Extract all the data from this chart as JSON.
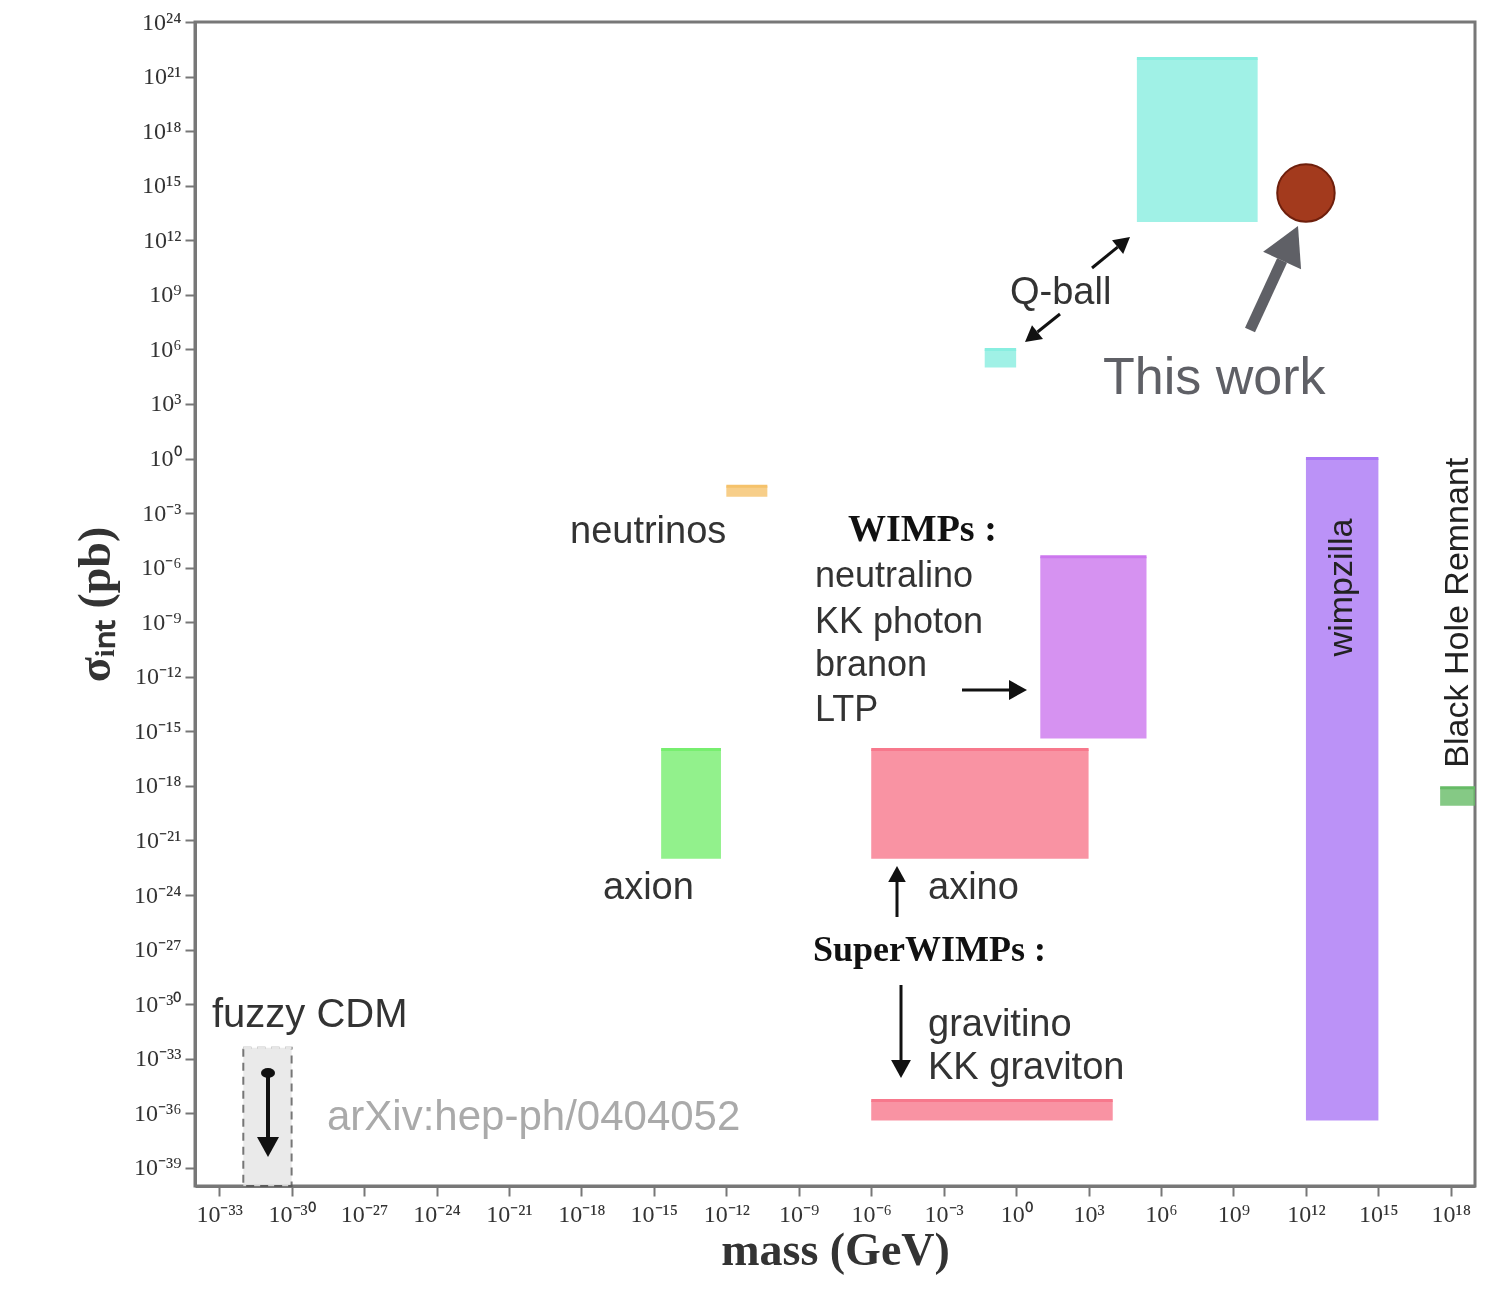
{
  "chart_data": {
    "type": "line",
    "xlabel": "mass (GeV)",
    "ylabel": "σᵢₙₜ (pb)",
    "log": "xy",
    "grid": false,
    "xlim": [
      1e-34,
      1e+19
    ],
    "ylim": [
      1e-40,
      1e+24
    ],
    "xticks": [
      {
        "value": 1e-33,
        "label": "10⁻³³"
      },
      {
        "value": 1e-30,
        "label": "10⁻³⁰"
      },
      {
        "value": 1e-27,
        "label": "10⁻²⁷"
      },
      {
        "value": 1e-24,
        "label": "10⁻²⁴"
      },
      {
        "value": 1e-21,
        "label": "10⁻²¹"
      },
      {
        "value": 1e-18,
        "label": "10⁻¹⁸"
      },
      {
        "value": 1e-15,
        "label": "10⁻¹⁵"
      },
      {
        "value": 1e-12,
        "label": "10⁻¹²"
      },
      {
        "value": 1e-09,
        "label": "10⁻⁹"
      },
      {
        "value": 1e-06,
        "label": "10⁻⁶"
      },
      {
        "value": 0.001,
        "label": "10⁻³"
      },
      {
        "value": 1,
        "label": "10⁰"
      },
      {
        "value": 1000.0,
        "label": "10³"
      },
      {
        "value": 1000000.0,
        "label": "10⁶"
      },
      {
        "value": 1000000000.0,
        "label": "10⁹"
      },
      {
        "value": 1000000000000.0,
        "label": "10¹²"
      },
      {
        "value": 1000000000000000.0,
        "label": "10¹⁵"
      },
      {
        "value": 1e+18,
        "label": "10¹⁸"
      }
    ],
    "yticks": [
      {
        "value": 1e-39,
        "label": "10⁻³⁹"
      },
      {
        "value": 1e-36,
        "label": "10⁻³⁶"
      },
      {
        "value": 1e-33,
        "label": "10⁻³³"
      },
      {
        "value": 1e-30,
        "label": "10⁻³⁰"
      },
      {
        "value": 1e-27,
        "label": "10⁻²⁷"
      },
      {
        "value": 1e-24,
        "label": "10⁻²⁴"
      },
      {
        "value": 1e-21,
        "label": "10⁻²¹"
      },
      {
        "value": 1e-18,
        "label": "10⁻¹⁸"
      },
      {
        "value": 1e-15,
        "label": "10⁻¹⁵"
      },
      {
        "value": 1e-12,
        "label": "10⁻¹²"
      },
      {
        "value": 1e-09,
        "label": "10⁻⁹"
      },
      {
        "value": 1e-06,
        "label": "10⁻⁶"
      },
      {
        "value": 0.001,
        "label": "10⁻³"
      },
      {
        "value": 1,
        "label": "10⁰"
      },
      {
        "value": 1000.0,
        "label": "10³"
      },
      {
        "value": 1000000.0,
        "label": "10⁶"
      },
      {
        "value": 1000000000.0,
        "label": "10⁹"
      },
      {
        "value": 1000000000000.0,
        "label": "10¹²"
      },
      {
        "value": 1000000000000000.0,
        "label": "10¹⁵"
      },
      {
        "value": 1e+18,
        "label": "10¹⁸"
      },
      {
        "value": 1e+21,
        "label": "10²¹"
      },
      {
        "value": 1e+24,
        "label": "10²⁴"
      }
    ],
    "series": [
      {
        "color": "#88eee0",
        "x": [
          100000.0,
          10000000000.0
        ],
        "values": [
          1e+22,
          1e+22
        ],
        "upper": [
          1e+22,
          1e+22
        ],
        "lower": [
          10000000000000.0,
          10000000000000.0
        ]
      },
      {
        "color": "#88eee0",
        "x": [
          0.05,
          1
        ],
        "values": [
          1000000.0,
          1000000.0
        ],
        "upper": [
          1000000.0,
          1000000.0
        ],
        "lower": [
          100000.0,
          100000.0
        ]
      },
      {
        "color": "#f5c26b",
        "x": [
          1e-12,
          5e-11
        ],
        "values": [
          0.03,
          0.03
        ],
        "upper": [
          0.03,
          0.03
        ],
        "lower": [
          0.008,
          0.008
        ]
      },
      {
        "color": "#77ee6f",
        "x": [
          2e-15,
          6e-13
        ],
        "values": [
          1e-16,
          1e-16
        ],
        "upper": [
          1e-16,
          1e-16
        ],
        "lower": [
          1e-22,
          1e-22
        ]
      },
      {
        "color": "#cc77ee",
        "x": [
          10,
          250000.0
        ],
        "values": [
          4e-06,
          4e-06
        ],
        "upper": [
          4e-06,
          4e-06
        ],
        "lower": [
          4e-16,
          4e-16
        ]
      },
      {
        "color": "#f7788c",
        "x": [
          1e-06,
          1000.0
        ],
        "values": [
          1e-16,
          1e-16
        ],
        "upper": [
          1e-16,
          1e-16
        ],
        "lower": [
          1e-22,
          1e-22
        ]
      },
      {
        "color": "#f7788c",
        "x": [
          1e-06,
          10000.0
        ],
        "values": [
          5e-36,
          5e-36
        ],
        "upper": [
          5e-36,
          5e-36
        ],
        "lower": [
          4e-37,
          4e-37
        ]
      },
      {
        "name": "wimpzilla",
        "color": "#aa77f5",
        "x": [
          1000000000000.0,
          1000000000000000.0
        ],
        "values": [
          1,
          1
        ],
        "upper": [
          1,
          1
        ],
        "lower": [
          4e-37,
          4e-37
        ]
      },
      {
        "name": "Black Hole Remnant",
        "color": "#66bb66",
        "x": [
          3.6e+17,
          1e+19
        ],
        "values": [
          8e-19,
          8e-19
        ],
        "upper": [
          8e-19,
          8e-19
        ],
        "lower": [
          8e-20,
          8e-20
        ]
      },
      {
        "color": "#e6e6e6",
        "line_style": "dashed",
        "x": [
          1e-32,
          1e-30
        ],
        "values": [
          4e-33,
          4e-33
        ],
        "upper": [
          4e-33,
          4e-33
        ],
        "lower": [
          1e-40,
          1e-40
        ]
      },
      {
        "type": "scatter",
        "marker": "circle",
        "color": "#a33a1d",
        "x": [
          1000000000000.0
        ],
        "values": [
          400000000000000.0
        ]
      }
    ],
    "annotations": [
      "Q-ball",
      "This work",
      "neutrinos",
      "WIMPs :",
      "neutralino",
      "KK photon",
      "branon",
      "LTP",
      "axion",
      "axino",
      "SuperWIMPs :",
      "gravitino",
      "KK graviton",
      "fuzzy CDM",
      "arXiv:hep-ph/0404052"
    ]
  }
}
